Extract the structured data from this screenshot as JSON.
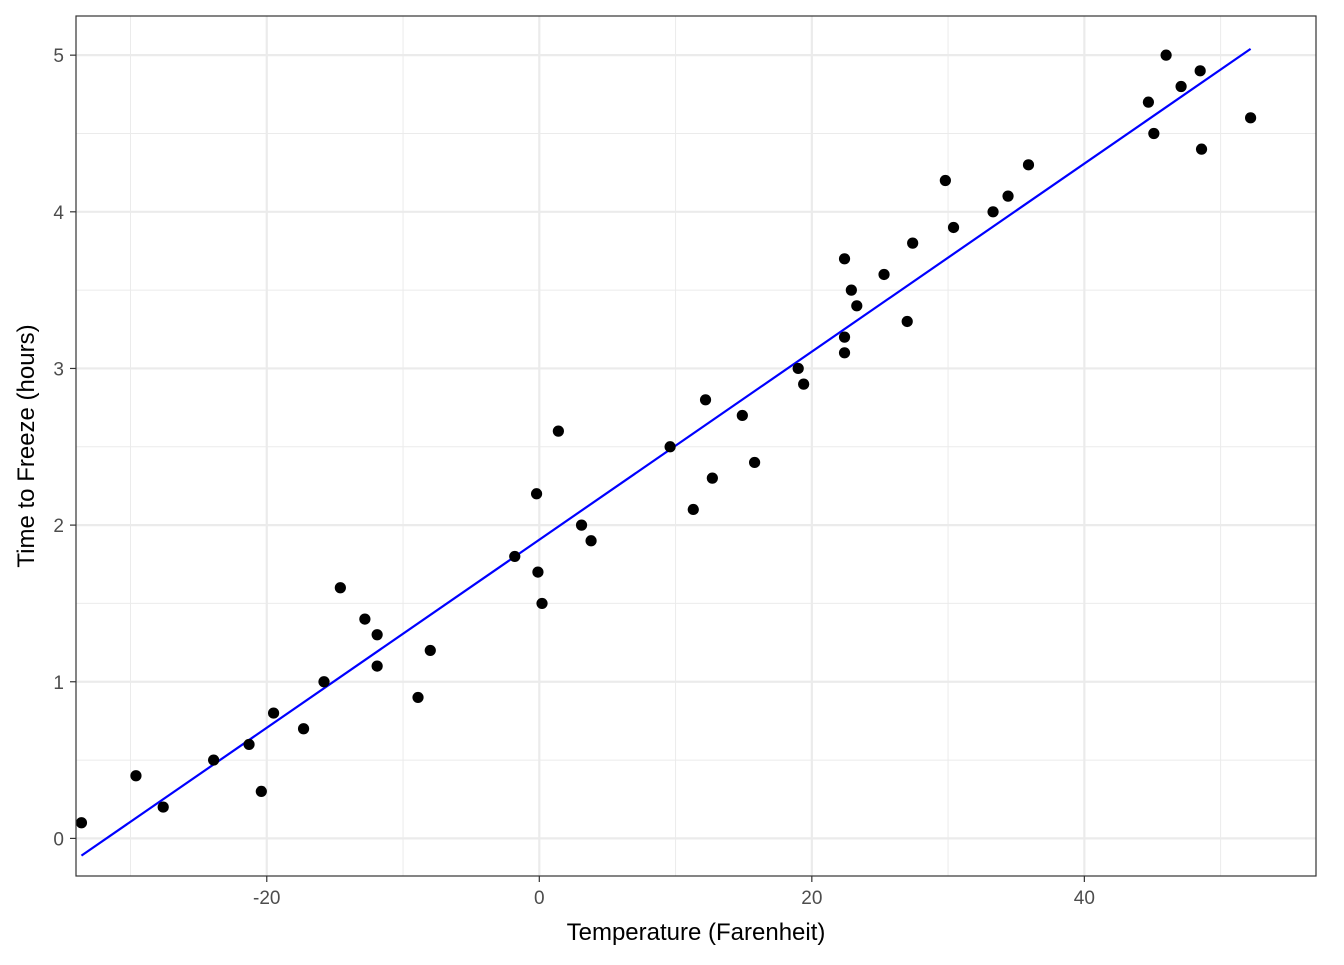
{
  "chart_data": {
    "type": "scatter",
    "title": "",
    "xlabel": "Temperature (Farenheit)",
    "ylabel": "Time to Freeze (hours)",
    "xlim": [
      -34,
      57
    ],
    "ylim": [
      -0.24,
      5.25
    ],
    "x_ticks": [
      -20,
      0,
      20,
      40
    ],
    "x_tick_labels": [
      "-20",
      "0",
      "20",
      "40"
    ],
    "x_minor_ticks": [
      -30,
      -10,
      10,
      30,
      50
    ],
    "y_ticks": [
      0,
      1,
      2,
      3,
      4,
      5
    ],
    "y_tick_labels": [
      "0",
      "1",
      "2",
      "3",
      "4",
      "5"
    ],
    "y_minor_ticks": [
      0.5,
      1.5,
      2.5,
      3.5,
      4.5
    ],
    "grid": true,
    "point_color": "#000000",
    "line_color": "#0000ff",
    "points": [
      {
        "x": -33.6,
        "y": 0.1
      },
      {
        "x": -29.6,
        "y": 0.4
      },
      {
        "x": -27.6,
        "y": 0.2
      },
      {
        "x": -23.9,
        "y": 0.5
      },
      {
        "x": -21.3,
        "y": 0.6
      },
      {
        "x": -20.4,
        "y": 0.3
      },
      {
        "x": -19.5,
        "y": 0.8
      },
      {
        "x": -17.3,
        "y": 0.7
      },
      {
        "x": -15.8,
        "y": 1.0
      },
      {
        "x": -14.6,
        "y": 1.6
      },
      {
        "x": -12.8,
        "y": 1.4
      },
      {
        "x": -11.9,
        "y": 1.3
      },
      {
        "x": -11.9,
        "y": 1.1
      },
      {
        "x": -8.9,
        "y": 0.9
      },
      {
        "x": -8.0,
        "y": 1.2
      },
      {
        "x": -1.8,
        "y": 1.8
      },
      {
        "x": -0.2,
        "y": 2.2
      },
      {
        "x": -0.1,
        "y": 1.7
      },
      {
        "x": 0.2,
        "y": 1.5
      },
      {
        "x": 1.4,
        "y": 2.6
      },
      {
        "x": 3.1,
        "y": 2.0
      },
      {
        "x": 3.8,
        "y": 1.9
      },
      {
        "x": 9.6,
        "y": 2.5
      },
      {
        "x": 11.3,
        "y": 2.1
      },
      {
        "x": 12.2,
        "y": 2.8
      },
      {
        "x": 12.7,
        "y": 2.3
      },
      {
        "x": 14.9,
        "y": 2.7
      },
      {
        "x": 15.8,
        "y": 2.4
      },
      {
        "x": 19.0,
        "y": 3.0
      },
      {
        "x": 19.4,
        "y": 2.9
      },
      {
        "x": 22.4,
        "y": 3.7
      },
      {
        "x": 22.4,
        "y": 3.2
      },
      {
        "x": 22.4,
        "y": 3.1
      },
      {
        "x": 22.9,
        "y": 3.5
      },
      {
        "x": 23.3,
        "y": 3.4
      },
      {
        "x": 25.3,
        "y": 3.6
      },
      {
        "x": 27.0,
        "y": 3.3
      },
      {
        "x": 27.4,
        "y": 3.8
      },
      {
        "x": 29.8,
        "y": 4.2
      },
      {
        "x": 30.4,
        "y": 3.9
      },
      {
        "x": 33.3,
        "y": 4.0
      },
      {
        "x": 34.4,
        "y": 4.1
      },
      {
        "x": 35.9,
        "y": 4.3
      },
      {
        "x": 44.7,
        "y": 4.7
      },
      {
        "x": 45.1,
        "y": 4.5
      },
      {
        "x": 46.0,
        "y": 5.0
      },
      {
        "x": 47.1,
        "y": 4.8
      },
      {
        "x": 48.5,
        "y": 4.9
      },
      {
        "x": 48.6,
        "y": 4.4
      },
      {
        "x": 52.2,
        "y": 4.6
      }
    ],
    "fit_line": {
      "x": [
        -33.6,
        52.2
      ],
      "y": [
        -0.11,
        5.04
      ]
    }
  }
}
